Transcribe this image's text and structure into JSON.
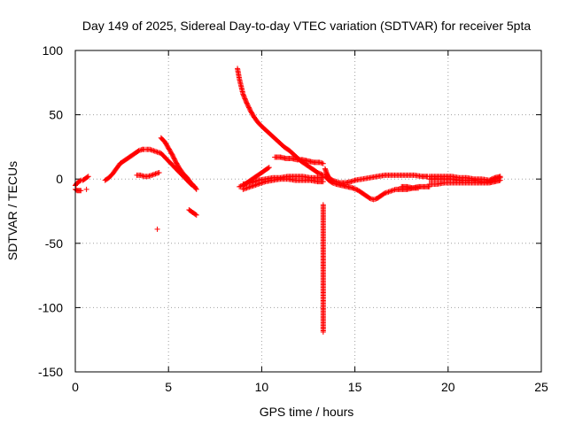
{
  "chart_data": {
    "type": "scatter",
    "title": "Day 149 of 2025, Sidereal Day-to-day VTEC variation (SDTVAR) for receiver 5pta",
    "xlabel": "GPS time / hours",
    "ylabel": "SDTVAR / TECUs",
    "xlim": [
      0,
      25
    ],
    "ylim": [
      -150,
      100
    ],
    "xticks": [
      0,
      5,
      10,
      15,
      20,
      25
    ],
    "yticks": [
      -150,
      -100,
      -50,
      0,
      50,
      100
    ],
    "xtick_labels": [
      "0",
      "5",
      "10",
      "15",
      "20",
      "25"
    ],
    "ytick_labels": [
      "-150",
      "-100",
      "-50",
      "0",
      "50",
      "100"
    ],
    "grid": true,
    "legend": "none",
    "marker": "plus",
    "series_color": "#ff0000",
    "grid_color": "#a0a0a0",
    "segments": [
      {
        "name": "arc-0.0-0.3",
        "points": [
          [
            0.0,
            -5
          ],
          [
            0.1,
            -3
          ],
          [
            0.2,
            -2
          ],
          [
            0.3,
            -1
          ]
        ]
      },
      {
        "name": "arc-0.0-0.3-neg",
        "points": [
          [
            0.0,
            -8
          ],
          [
            0.1,
            -9
          ],
          [
            0.2,
            -9
          ],
          [
            0.3,
            -9
          ]
        ]
      },
      {
        "name": "arc-0.4-0.7",
        "points": [
          [
            0.4,
            -1
          ],
          [
            0.5,
            0
          ],
          [
            0.6,
            1
          ],
          [
            0.7,
            2
          ]
        ]
      },
      {
        "name": "outlier-0.6",
        "points": [
          [
            0.6,
            -8
          ]
        ]
      },
      {
        "name": "arc-1.6-3.7",
        "points": [
          [
            1.6,
            -1
          ],
          [
            1.8,
            1
          ],
          [
            2.0,
            4
          ],
          [
            2.2,
            8
          ],
          [
            2.4,
            12
          ],
          [
            2.6,
            14
          ],
          [
            2.8,
            16
          ],
          [
            3.0,
            18
          ],
          [
            3.2,
            20
          ],
          [
            3.4,
            22
          ],
          [
            3.6,
            23
          ],
          [
            3.7,
            23
          ]
        ]
      },
      {
        "name": "arc-3.3-4.5-low",
        "points": [
          [
            3.3,
            3
          ],
          [
            3.5,
            3
          ],
          [
            3.7,
            2
          ],
          [
            3.9,
            2
          ],
          [
            4.1,
            3
          ],
          [
            4.3,
            4
          ],
          [
            4.5,
            5
          ]
        ]
      },
      {
        "name": "arc-3.8-6.4-upper",
        "points": [
          [
            3.8,
            23
          ],
          [
            4.0,
            23
          ],
          [
            4.2,
            22
          ],
          [
            4.4,
            21
          ],
          [
            4.6,
            20
          ],
          [
            4.8,
            17
          ],
          [
            5.0,
            14
          ],
          [
            5.2,
            11
          ],
          [
            5.4,
            8
          ],
          [
            5.6,
            5
          ],
          [
            5.8,
            2
          ],
          [
            6.0,
            -1
          ],
          [
            6.2,
            -4
          ],
          [
            6.4,
            -6
          ]
        ]
      },
      {
        "name": "arc-4.6-6.5-upper",
        "points": [
          [
            4.6,
            32
          ],
          [
            4.8,
            29
          ],
          [
            5.0,
            24
          ],
          [
            5.2,
            19
          ],
          [
            5.4,
            13
          ],
          [
            5.6,
            8
          ],
          [
            5.8,
            4
          ],
          [
            6.0,
            1
          ],
          [
            6.2,
            -3
          ],
          [
            6.4,
            -6
          ],
          [
            6.5,
            -8
          ]
        ]
      },
      {
        "name": "outlier-4.4",
        "points": [
          [
            4.4,
            -39
          ]
        ]
      },
      {
        "name": "arc-6.1-6.5-neg",
        "points": [
          [
            6.1,
            -24
          ],
          [
            6.2,
            -25
          ],
          [
            6.3,
            -26
          ],
          [
            6.4,
            -27
          ],
          [
            6.5,
            -28
          ]
        ]
      },
      {
        "name": "arc-8.7-13.3-decay",
        "points": [
          [
            8.7,
            86
          ],
          [
            8.8,
            78
          ],
          [
            8.9,
            72
          ],
          [
            9.0,
            66
          ],
          [
            9.2,
            59
          ],
          [
            9.4,
            53
          ],
          [
            9.6,
            48
          ],
          [
            9.8,
            44
          ],
          [
            10.0,
            41
          ],
          [
            10.3,
            37
          ],
          [
            10.6,
            33
          ],
          [
            10.9,
            29
          ],
          [
            11.2,
            25
          ],
          [
            11.5,
            22
          ],
          [
            11.8,
            18
          ],
          [
            12.1,
            14
          ],
          [
            12.4,
            11
          ],
          [
            12.7,
            8
          ],
          [
            13.0,
            5
          ],
          [
            13.3,
            3
          ]
        ]
      },
      {
        "name": "arc-8.8-10.4-rise",
        "points": [
          [
            8.8,
            -6
          ],
          [
            9.0,
            -5
          ],
          [
            9.2,
            -3
          ],
          [
            9.4,
            -1
          ],
          [
            9.6,
            1
          ],
          [
            9.8,
            3
          ],
          [
            10.0,
            5
          ],
          [
            10.2,
            7
          ],
          [
            10.4,
            9
          ]
        ]
      },
      {
        "name": "arc-9.0-13.3-flat-a",
        "points": [
          [
            9.0,
            -4
          ],
          [
            9.4,
            -3
          ],
          [
            9.8,
            -1
          ],
          [
            10.2,
            0
          ],
          [
            10.6,
            1
          ],
          [
            11.0,
            1
          ],
          [
            11.4,
            2
          ],
          [
            11.8,
            2
          ],
          [
            12.2,
            2
          ],
          [
            12.6,
            1
          ],
          [
            13.0,
            1
          ],
          [
            13.3,
            1
          ]
        ]
      },
      {
        "name": "arc-9.0-13.3-flat-b",
        "points": [
          [
            9.0,
            -8
          ],
          [
            9.4,
            -6
          ],
          [
            9.8,
            -4
          ],
          [
            10.2,
            -2
          ],
          [
            10.6,
            -1
          ],
          [
            11.0,
            0
          ],
          [
            11.4,
            0
          ],
          [
            11.8,
            -1
          ],
          [
            12.2,
            -1
          ],
          [
            12.6,
            -1
          ],
          [
            13.0,
            -2
          ],
          [
            13.3,
            -2
          ]
        ]
      },
      {
        "name": "arc-10.7-13.3-mid",
        "points": [
          [
            10.7,
            17
          ],
          [
            11.0,
            17
          ],
          [
            11.3,
            16
          ],
          [
            11.6,
            16
          ],
          [
            11.9,
            15
          ],
          [
            12.2,
            15
          ],
          [
            12.5,
            14
          ],
          [
            12.8,
            13
          ],
          [
            13.1,
            13
          ],
          [
            13.3,
            12
          ]
        ]
      },
      {
        "name": "outliers-13.3",
        "points": [
          [
            13.3,
            -20
          ],
          [
            13.3,
            -55
          ],
          [
            13.3,
            -56
          ],
          [
            13.3,
            -67
          ],
          [
            13.3,
            -68
          ],
          [
            13.3,
            -119
          ]
        ]
      },
      {
        "name": "arc-13.4-15.0-drop",
        "points": [
          [
            13.4,
            8
          ],
          [
            13.5,
            4
          ],
          [
            13.6,
            1
          ],
          [
            13.8,
            -1
          ],
          [
            14.0,
            -2
          ],
          [
            14.2,
            -3
          ],
          [
            14.5,
            -3
          ],
          [
            14.8,
            -2
          ],
          [
            15.0,
            -1
          ]
        ]
      },
      {
        "name": "arc-13.4-16.0-dip",
        "points": [
          [
            13.4,
            2
          ],
          [
            13.6,
            -1
          ],
          [
            13.8,
            -3
          ],
          [
            14.0,
            -4
          ],
          [
            14.3,
            -5
          ],
          [
            14.6,
            -6
          ],
          [
            14.9,
            -7
          ],
          [
            15.2,
            -9
          ],
          [
            15.5,
            -12
          ],
          [
            15.8,
            -15
          ],
          [
            16.0,
            -16
          ],
          [
            16.2,
            -15
          ]
        ]
      },
      {
        "name": "arc-15.0-18.9-flat",
        "points": [
          [
            15.0,
            -1
          ],
          [
            15.4,
            0
          ],
          [
            15.8,
            1
          ],
          [
            16.2,
            2
          ],
          [
            16.6,
            3
          ],
          [
            17.0,
            3
          ],
          [
            17.4,
            3
          ],
          [
            17.8,
            3
          ],
          [
            18.2,
            3
          ],
          [
            18.6,
            2
          ],
          [
            18.9,
            2
          ]
        ]
      },
      {
        "name": "arc-16.2-18.4-recover",
        "points": [
          [
            16.2,
            -15
          ],
          [
            16.4,
            -13
          ],
          [
            16.6,
            -11
          ],
          [
            16.8,
            -10
          ],
          [
            17.0,
            -9
          ],
          [
            17.2,
            -8
          ],
          [
            17.5,
            -8
          ],
          [
            17.8,
            -8
          ],
          [
            18.1,
            -7
          ],
          [
            18.4,
            -7
          ]
        ]
      },
      {
        "name": "arc-17.5-19.0-low",
        "points": [
          [
            17.5,
            -6
          ],
          [
            17.8,
            -6
          ],
          [
            18.1,
            -7
          ],
          [
            18.4,
            -6
          ],
          [
            18.7,
            -6
          ],
          [
            19.0,
            -6
          ]
        ]
      },
      {
        "name": "arc-19.0-22.8-a",
        "points": [
          [
            19.0,
            0
          ],
          [
            19.4,
            0
          ],
          [
            19.8,
            0
          ],
          [
            20.2,
            0
          ],
          [
            20.6,
            -1
          ],
          [
            21.0,
            -1
          ],
          [
            21.4,
            -1
          ],
          [
            21.8,
            -2
          ],
          [
            22.2,
            -2
          ],
          [
            22.5,
            0
          ],
          [
            22.8,
            1
          ]
        ]
      },
      {
        "name": "arc-19.0-22.8-b",
        "points": [
          [
            19.0,
            -4
          ],
          [
            19.4,
            -4
          ],
          [
            19.8,
            -3
          ],
          [
            20.2,
            -3
          ],
          [
            20.6,
            -3
          ],
          [
            21.0,
            -3
          ],
          [
            21.4,
            -3
          ],
          [
            21.8,
            -3
          ],
          [
            22.2,
            -3
          ],
          [
            22.5,
            -2
          ],
          [
            22.8,
            -1
          ]
        ]
      },
      {
        "name": "arc-19.0-22.8-c",
        "points": [
          [
            19.0,
            2
          ],
          [
            19.4,
            2
          ],
          [
            19.8,
            2
          ],
          [
            20.2,
            2
          ],
          [
            20.6,
            1
          ],
          [
            21.0,
            1
          ],
          [
            21.4,
            0
          ],
          [
            21.8,
            0
          ],
          [
            22.2,
            -1
          ],
          [
            22.5,
            1
          ],
          [
            22.8,
            2
          ]
        ]
      }
    ]
  }
}
